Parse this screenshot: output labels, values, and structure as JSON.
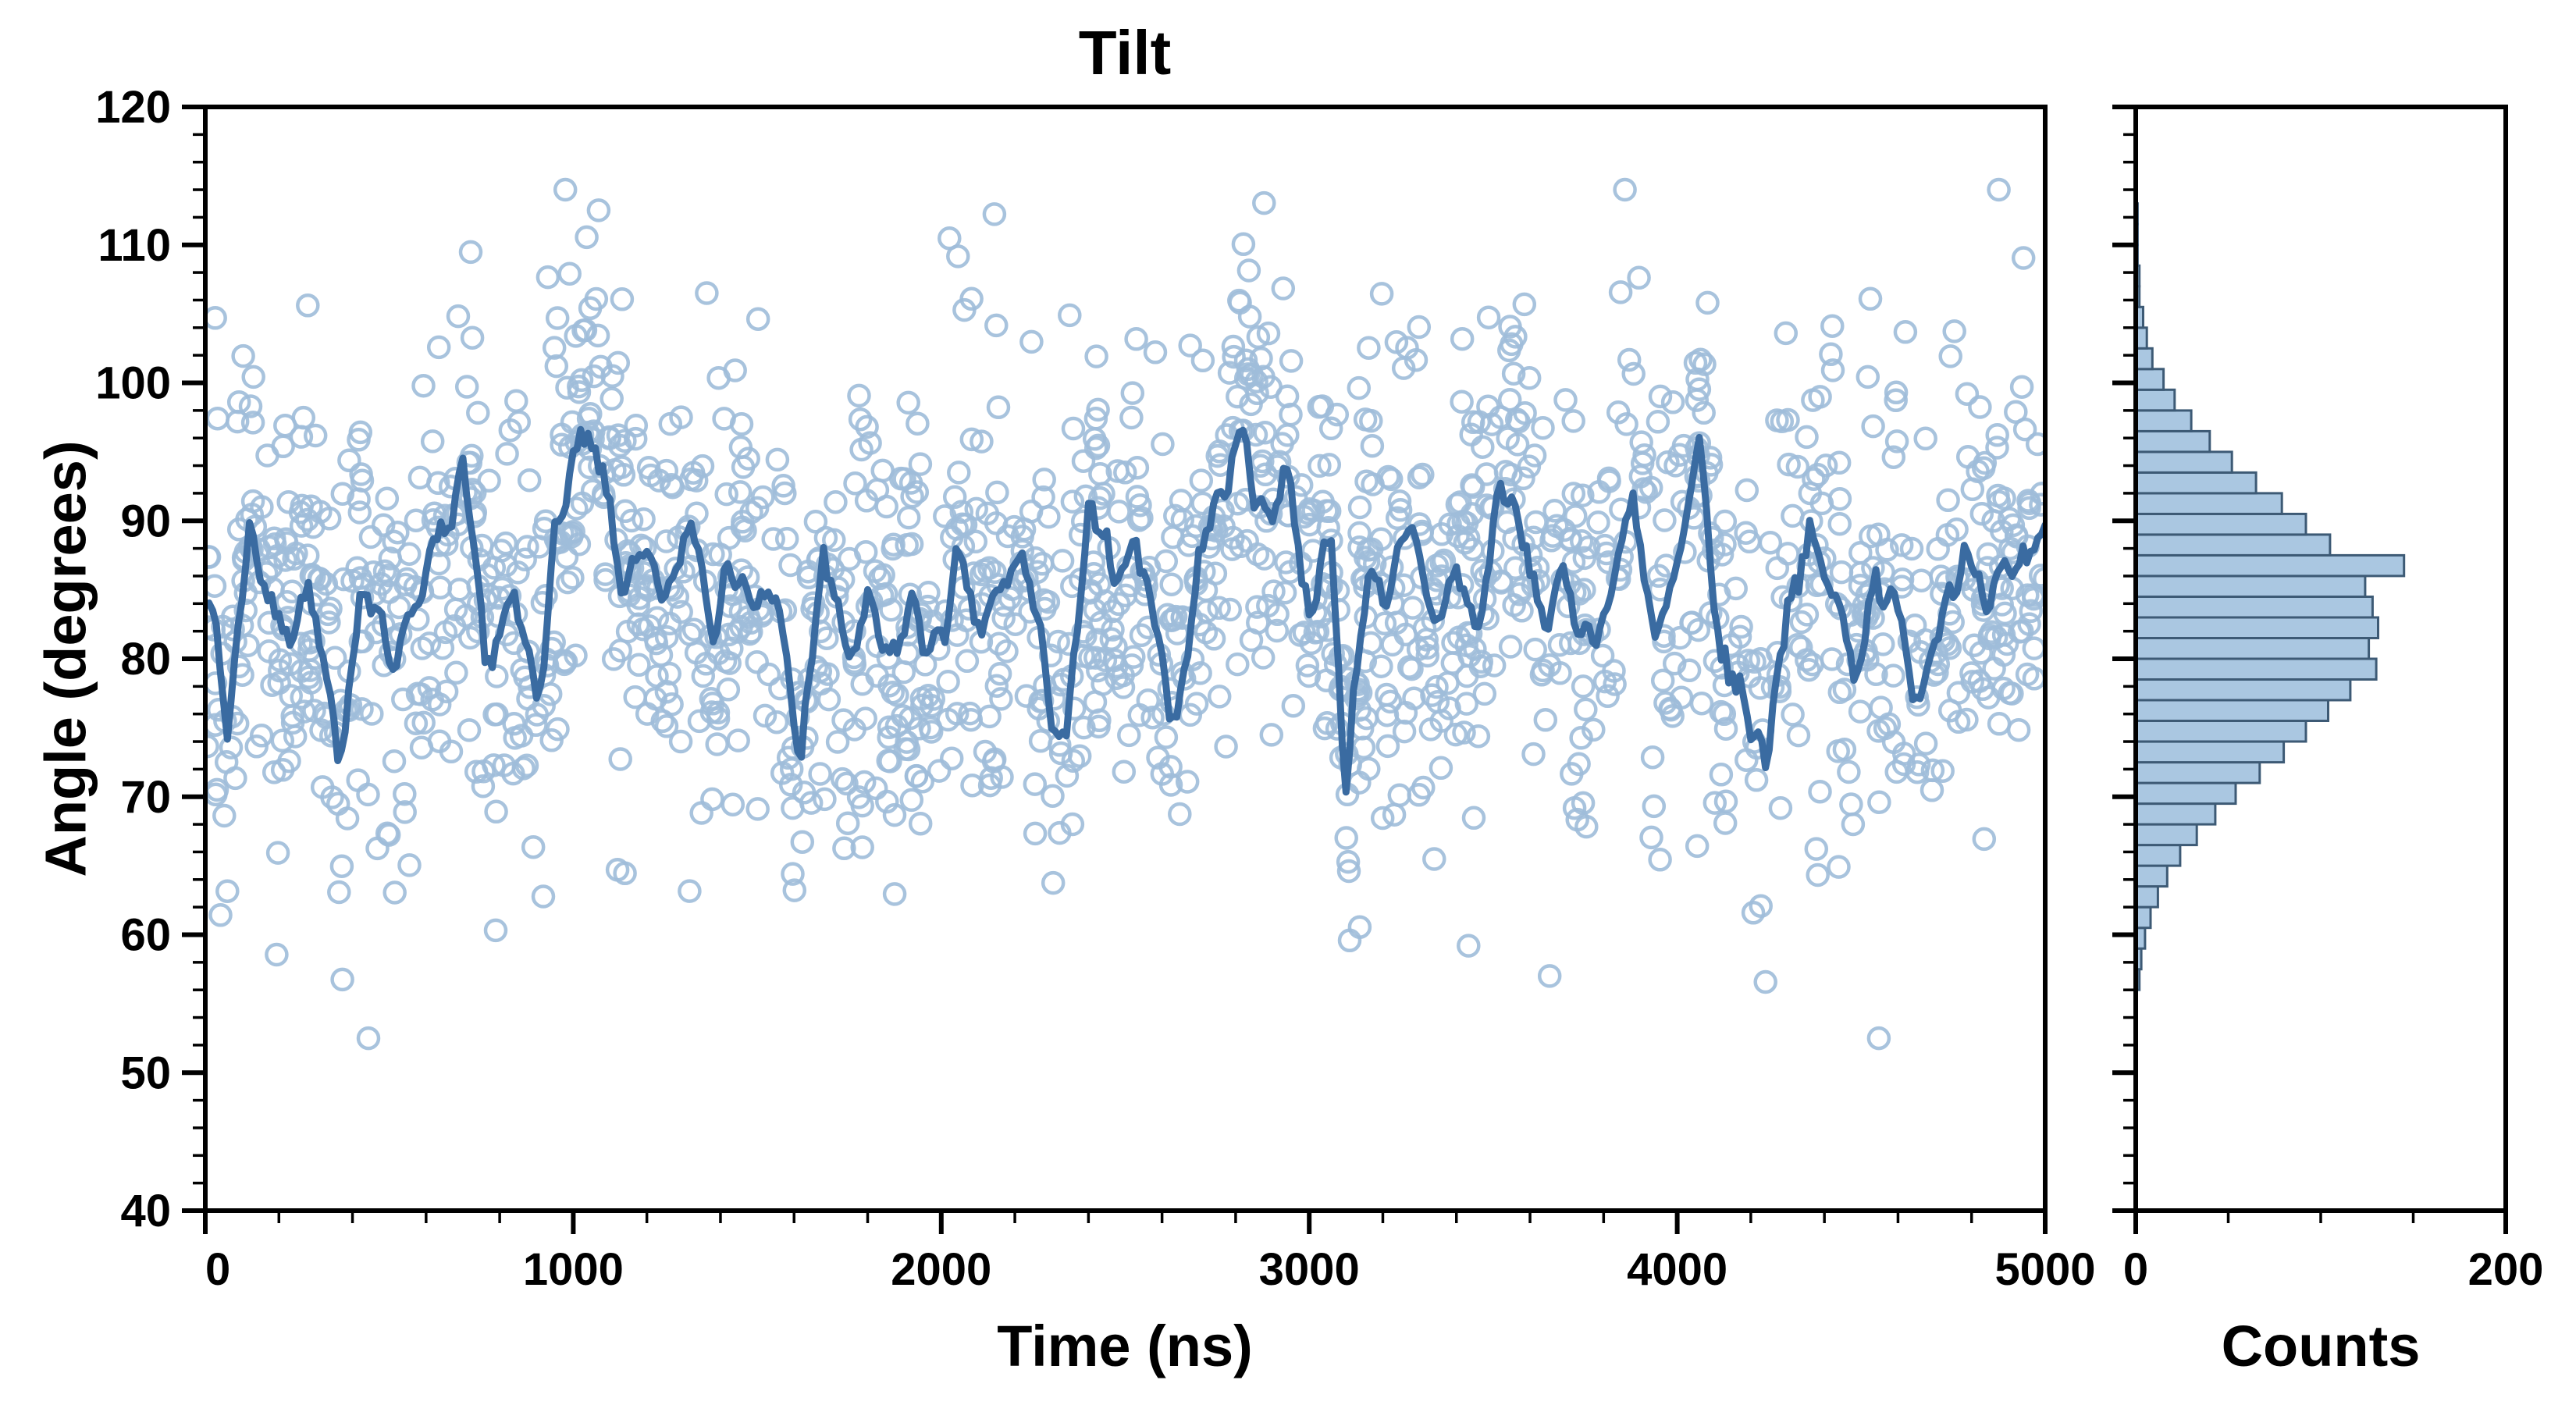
{
  "figure": {
    "title": "Tilt",
    "background": "#ffffff"
  },
  "main_plot": {
    "xlabel": "Time (ns)",
    "ylabel": "Angle (degrees)",
    "xlim": [
      0,
      5000
    ],
    "ylim": [
      40,
      120
    ],
    "x_major_ticks": [
      0,
      1000,
      2000,
      3000,
      4000,
      5000
    ],
    "x_minor_step": 200,
    "y_major_ticks": [
      40,
      50,
      60,
      70,
      80,
      90,
      100,
      110,
      120
    ],
    "y_minor_step": 2
  },
  "hist_plot": {
    "xlabel": "Counts",
    "xlim": [
      0,
      200
    ],
    "x_major_ticks": [
      0,
      200
    ],
    "x_minor_ticks": [
      50,
      100,
      150
    ]
  },
  "colors": {
    "scatter_stroke": "#9fbdd9",
    "line": "#3a6ba1",
    "hist_fill": "#aac7e1",
    "hist_edge": "#3d5a75",
    "axes": "#000000"
  },
  "chart_data": [
    {
      "type": "scatter",
      "title": "Tilt",
      "xlabel": "Time (ns)",
      "ylabel": "Angle (degrees)",
      "xlim": [
        0,
        5000
      ],
      "ylim": [
        40,
        120
      ],
      "grid": false,
      "series": [
        {
          "name": "tilt-samples",
          "style": "open-circles",
          "n_points": 1700,
          "mean": 84.8,
          "sd_core": 7.5,
          "sd_tail": 13,
          "tail_frac": 0.1,
          "clip": [
            52.5,
            114
          ],
          "seed": 42
        },
        {
          "name": "running-average",
          "style": "line",
          "noise_sd": 3.2,
          "seed": 7,
          "anchors_t": [
            0,
            60,
            120,
            200,
            280,
            360,
            420,
            500,
            560,
            640,
            700,
            760,
            840,
            900,
            960,
            1020,
            1080,
            1140,
            1200,
            1260,
            1320,
            1380,
            1440,
            1500,
            1560,
            1620,
            1680,
            1740,
            1800,
            1860,
            1920,
            1980,
            2040,
            2100,
            2160,
            2220,
            2280,
            2340,
            2400,
            2460,
            2520,
            2580,
            2640,
            2700,
            2760,
            2820,
            2880,
            2940,
            3000,
            3060,
            3100,
            3160,
            3220,
            3280,
            3340,
            3400,
            3460,
            3520,
            3580,
            3640,
            3700,
            3760,
            3820,
            3880,
            3940,
            4000,
            4060,
            4120,
            4180,
            4240,
            4300,
            4360,
            4420,
            4480,
            4540,
            4600,
            4660,
            4720,
            4780,
            4840,
            4900,
            4960,
            5000
          ],
          "anchors_angle": [
            87,
            75,
            90,
            82,
            85,
            72,
            86,
            80,
            84,
            88,
            92,
            80,
            83,
            78,
            90,
            95,
            93,
            85,
            86,
            84,
            91,
            84,
            87,
            83,
            84,
            72,
            88,
            80,
            83,
            79,
            84,
            80,
            86,
            82,
            84,
            88,
            79,
            73,
            90,
            86,
            89,
            83,
            75,
            88,
            92,
            96,
            90,
            94,
            84,
            88,
            71,
            87,
            85,
            88,
            83,
            86,
            82,
            93,
            88,
            83,
            85,
            82,
            84,
            93,
            80,
            86,
            94,
            80,
            77,
            73,
            85,
            88,
            85,
            79,
            87,
            82,
            78,
            85,
            87,
            82,
            86,
            88,
            90
          ]
        }
      ]
    },
    {
      "type": "bar",
      "orientation": "horizontal",
      "xlabel": "Counts",
      "ylabel": "Angle (degrees)",
      "xlim": [
        0,
        200
      ],
      "bin_start": 56,
      "bin_width": 1.5,
      "counts": [
        2,
        3,
        5,
        8,
        12,
        17,
        24,
        33,
        43,
        54,
        67,
        80,
        92,
        104,
        116,
        130,
        126,
        131,
        128,
        124,
        145,
        105,
        92,
        79,
        65,
        52,
        40,
        30,
        21,
        15,
        9,
        6,
        4,
        2,
        2,
        1,
        1,
        1
      ]
    }
  ]
}
